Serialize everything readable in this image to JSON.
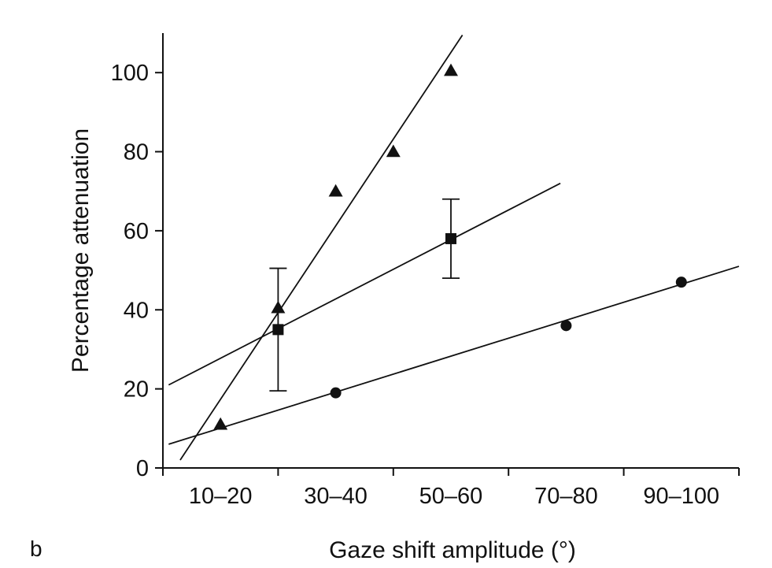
{
  "panel_label": "b",
  "chart_data": {
    "type": "scatter",
    "title": "",
    "xlabel": "Gaze shift amplitude (°)",
    "ylabel": "Percentage attenuation",
    "x_tick_labels": [
      "10–20",
      "30–40",
      "50–60",
      "70–80",
      "90–100"
    ],
    "x_tick_positions": [
      15,
      35,
      55,
      75,
      95
    ],
    "x_minor_ticks": [
      5,
      25,
      45,
      65,
      85,
      105
    ],
    "xlim": [
      5,
      105
    ],
    "ylim": [
      0,
      110
    ],
    "y_ticks": [
      0,
      20,
      40,
      60,
      80,
      100
    ],
    "series": [
      {
        "name": "triangles",
        "marker": "triangle",
        "points": [
          [
            15,
            11
          ],
          [
            25,
            40.5
          ],
          [
            35,
            70
          ],
          [
            45,
            80
          ],
          [
            55,
            100.5
          ]
        ],
        "fit_line": [
          [
            8,
            2
          ],
          [
            57,
            109.5
          ]
        ]
      },
      {
        "name": "squares",
        "marker": "square",
        "points": [
          [
            25,
            35
          ],
          [
            55,
            58
          ]
        ],
        "error_bars": [
          [
            19.5,
            50.5
          ],
          [
            48,
            68
          ]
        ],
        "fit_line": [
          [
            6,
            21
          ],
          [
            74,
            72
          ]
        ]
      },
      {
        "name": "circles",
        "marker": "circle",
        "points": [
          [
            35,
            19
          ],
          [
            75,
            36
          ],
          [
            95,
            47
          ]
        ],
        "fit_line": [
          [
            6,
            6
          ],
          [
            105,
            51
          ]
        ]
      }
    ]
  }
}
